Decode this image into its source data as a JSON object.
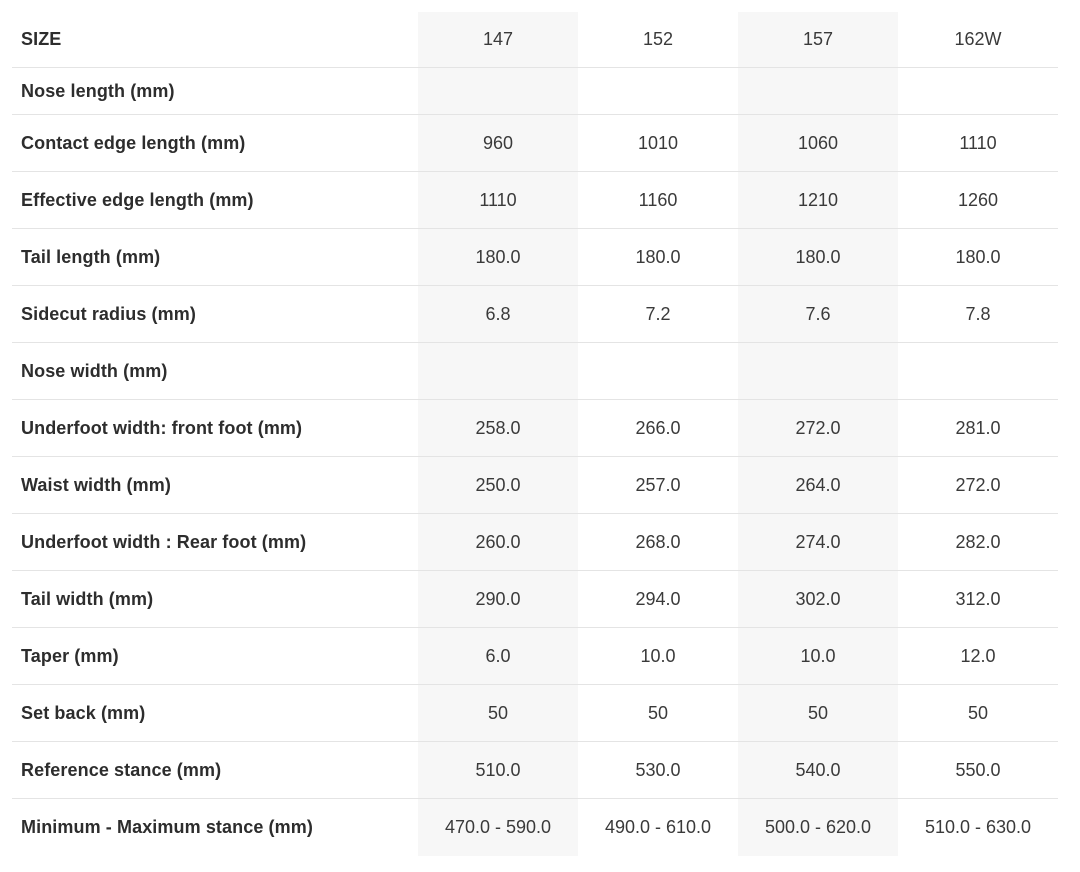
{
  "table": {
    "header": {
      "label": "SIZE",
      "sizes": [
        "147",
        "152",
        "157",
        "162W"
      ]
    },
    "rows": [
      {
        "label": "Nose length (mm)",
        "values": [
          "",
          "",
          "",
          ""
        ]
      },
      {
        "label": "Contact edge length (mm)",
        "values": [
          "960",
          "1010",
          "1060",
          "1110"
        ]
      },
      {
        "label": "Effective edge length (mm)",
        "values": [
          "1110",
          "1160",
          "1210",
          "1260"
        ]
      },
      {
        "label": "Tail length (mm)",
        "values": [
          "180.0",
          "180.0",
          "180.0",
          "180.0"
        ]
      },
      {
        "label": "Sidecut radius (mm)",
        "values": [
          "6.8",
          "7.2",
          "7.6",
          "7.8"
        ]
      },
      {
        "label": "Nose width (mm)",
        "values": [
          "",
          "",
          "",
          ""
        ]
      },
      {
        "label": "Underfoot width: front foot (mm)",
        "values": [
          "258.0",
          "266.0",
          "272.0",
          "281.0"
        ]
      },
      {
        "label": "Waist width (mm)",
        "values": [
          "250.0",
          "257.0",
          "264.0",
          "272.0"
        ]
      },
      {
        "label": "Underfoot width : Rear foot (mm)",
        "values": [
          "260.0",
          "268.0",
          "274.0",
          "282.0"
        ]
      },
      {
        "label": "Tail width (mm)",
        "values": [
          "290.0",
          "294.0",
          "302.0",
          "312.0"
        ]
      },
      {
        "label": "Taper (mm)",
        "values": [
          "6.0",
          "10.0",
          "10.0",
          "12.0"
        ]
      },
      {
        "label": "Set back (mm)",
        "values": [
          "50",
          "50",
          "50",
          "50"
        ]
      },
      {
        "label": "Reference stance (mm)",
        "values": [
          "510.0",
          "530.0",
          "540.0",
          "550.0"
        ]
      },
      {
        "label": "Minimum - Maximum stance (mm)",
        "values": [
          "470.0 - 590.0",
          "490.0 - 610.0",
          "500.0 - 620.0",
          "510.0 - 630.0"
        ]
      }
    ],
    "colors": {
      "striped_column_bg": "#f7f7f7",
      "row_divider": "#e4e4e4",
      "label_text": "#2d2d2d",
      "value_text": "#3a3a3a"
    }
  }
}
